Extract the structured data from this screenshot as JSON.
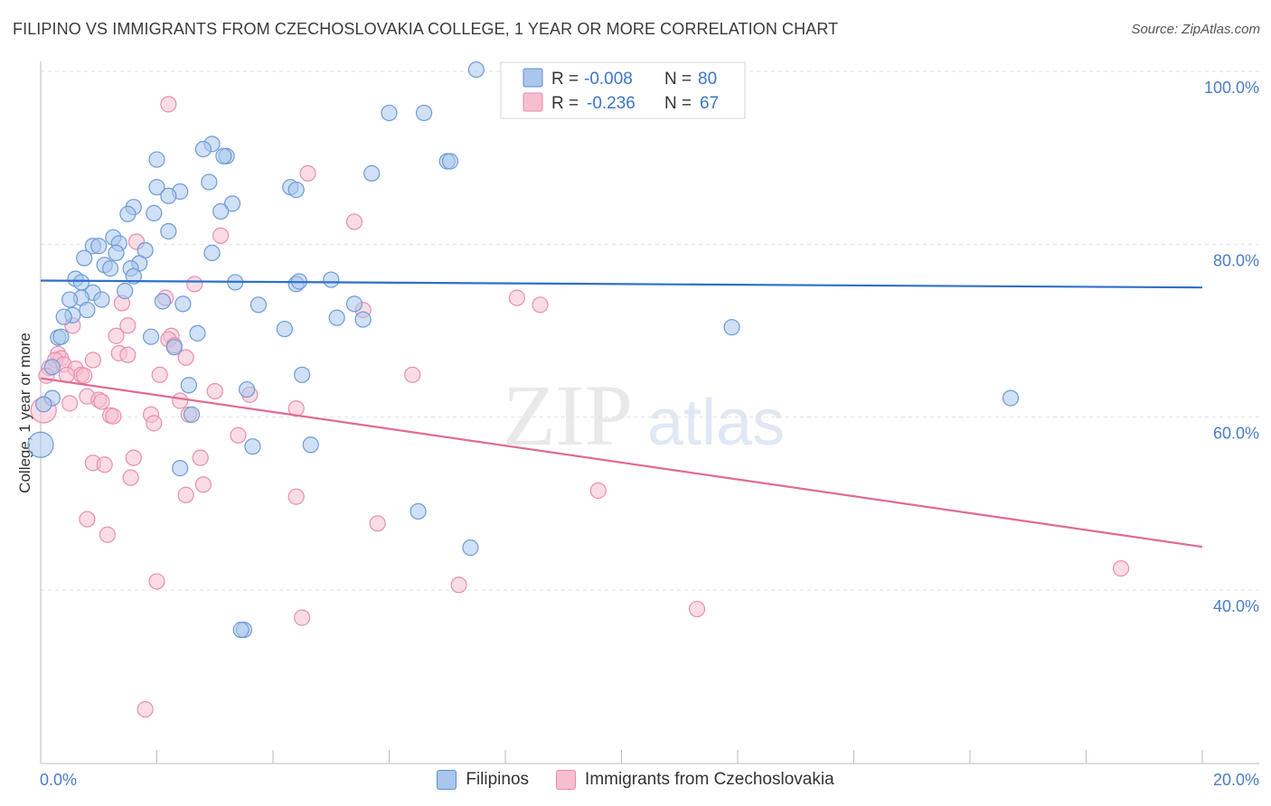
{
  "header": {
    "title": "FILIPINO VS IMMIGRANTS FROM CZECHOSLOVAKIA COLLEGE, 1 YEAR OR MORE CORRELATION CHART",
    "source": "Source: ZipAtlas.com"
  },
  "watermark": {
    "zip": "ZIP",
    "atlas": "atlas"
  },
  "colors": {
    "blue": "#5b8fd4",
    "blue_fill": "#aac6ec",
    "pink": "#e889a8",
    "pink_fill": "#f6bfd0",
    "axis_label": "#4a7cc7"
  },
  "legend": {
    "rows": [
      {
        "r_label": "R =",
        "r_value": "-0.008",
        "n_label": "N =",
        "n_value": "80"
      },
      {
        "r_label": "R =",
        "r_value": "-0.236",
        "n_label": "N =",
        "n_value": "67"
      }
    ]
  },
  "chart_data": {
    "type": "scatter",
    "title": "FILIPINO VS IMMIGRANTS FROM CZECHOSLOVAKIA COLLEGE, 1 YEAR OR MORE CORRELATION CHART",
    "xlabel": "",
    "ylabel": "College, 1 year or more",
    "xlim": [
      0,
      20
    ],
    "ylim": [
      20,
      102
    ],
    "x_tick_labels": [
      "0.0%",
      "20.0%"
    ],
    "y_ticks": [
      40,
      60,
      80,
      100
    ],
    "y_tick_labels": [
      "40.0%",
      "60.0%",
      "80.0%",
      "100.0%"
    ],
    "grid": true,
    "legend_position": "top-center",
    "series": [
      {
        "name": "Filipinos",
        "r": -0.008,
        "n": 80,
        "trend": {
          "x": [
            0,
            20
          ],
          "y": [
            75.8,
            75.0
          ]
        },
        "points": [
          [
            7.5,
            100.2
          ],
          [
            6.0,
            95.2
          ],
          [
            6.6,
            95.2
          ],
          [
            2.95,
            91.6
          ],
          [
            2.8,
            91.0
          ],
          [
            3.2,
            90.2
          ],
          [
            3.15,
            90.2
          ],
          [
            2.0,
            89.8
          ],
          [
            7.0,
            89.6
          ],
          [
            7.05,
            89.6
          ],
          [
            5.7,
            88.2
          ],
          [
            2.9,
            87.2
          ],
          [
            2.0,
            86.6
          ],
          [
            4.3,
            86.6
          ],
          [
            4.4,
            86.3
          ],
          [
            2.4,
            86.1
          ],
          [
            2.2,
            85.6
          ],
          [
            3.3,
            84.7
          ],
          [
            1.6,
            84.3
          ],
          [
            3.1,
            83.8
          ],
          [
            1.5,
            83.5
          ],
          [
            1.95,
            83.6
          ],
          [
            2.2,
            81.5
          ],
          [
            1.25,
            80.8
          ],
          [
            1.35,
            80.1
          ],
          [
            0.9,
            79.8
          ],
          [
            1.0,
            79.8
          ],
          [
            1.8,
            79.3
          ],
          [
            2.95,
            79.0
          ],
          [
            1.3,
            79.0
          ],
          [
            0.75,
            78.4
          ],
          [
            1.7,
            77.8
          ],
          [
            1.1,
            77.6
          ],
          [
            1.2,
            77.2
          ],
          [
            1.55,
            77.2
          ],
          [
            1.6,
            76.3
          ],
          [
            0.6,
            76.0
          ],
          [
            0.7,
            75.6
          ],
          [
            5.0,
            75.9
          ],
          [
            3.35,
            75.6
          ],
          [
            4.4,
            75.4
          ],
          [
            4.45,
            75.7
          ],
          [
            1.45,
            74.6
          ],
          [
            0.9,
            74.4
          ],
          [
            0.7,
            73.8
          ],
          [
            0.5,
            73.6
          ],
          [
            1.05,
            73.6
          ],
          [
            2.1,
            73.4
          ],
          [
            2.45,
            73.1
          ],
          [
            3.75,
            73.0
          ],
          [
            5.4,
            73.1
          ],
          [
            0.8,
            72.4
          ],
          [
            0.55,
            71.8
          ],
          [
            0.4,
            71.6
          ],
          [
            5.1,
            71.5
          ],
          [
            5.55,
            71.3
          ],
          [
            4.2,
            70.2
          ],
          [
            11.9,
            70.4
          ],
          [
            2.7,
            69.7
          ],
          [
            1.9,
            69.3
          ],
          [
            0.3,
            69.2
          ],
          [
            0.35,
            69.3
          ],
          [
            2.3,
            68.1
          ],
          [
            4.5,
            64.9
          ],
          [
            0.2,
            65.8
          ],
          [
            2.55,
            63.7
          ],
          [
            3.55,
            63.2
          ],
          [
            16.7,
            62.2
          ],
          [
            0.2,
            62.2
          ],
          [
            0.05,
            61.5
          ],
          [
            2.6,
            60.3
          ],
          [
            3.65,
            56.6
          ],
          [
            4.65,
            56.8
          ],
          [
            0.0,
            56.8
          ],
          [
            2.4,
            54.1
          ],
          [
            6.5,
            49.1
          ],
          [
            7.4,
            44.9
          ],
          [
            3.5,
            35.4
          ],
          [
            3.45,
            35.4
          ]
        ]
      },
      {
        "name": "Immigrants from Czechoslovakia",
        "r": -0.236,
        "n": 67,
        "trend": {
          "x": [
            0,
            20
          ],
          "y": [
            64.5,
            45.0
          ]
        },
        "points": [
          [
            2.2,
            96.2
          ],
          [
            4.6,
            88.2
          ],
          [
            5.4,
            82.6
          ],
          [
            3.1,
            81.0
          ],
          [
            1.65,
            80.3
          ],
          [
            2.65,
            75.4
          ],
          [
            2.15,
            73.8
          ],
          [
            8.2,
            73.8
          ],
          [
            8.6,
            73.0
          ],
          [
            1.4,
            73.2
          ],
          [
            5.55,
            72.4
          ],
          [
            1.5,
            70.6
          ],
          [
            0.55,
            70.6
          ],
          [
            1.3,
            69.4
          ],
          [
            2.25,
            69.4
          ],
          [
            2.2,
            69.0
          ],
          [
            2.3,
            68.3
          ],
          [
            1.35,
            67.4
          ],
          [
            1.5,
            67.2
          ],
          [
            0.3,
            67.3
          ],
          [
            0.35,
            66.8
          ],
          [
            0.25,
            66.6
          ],
          [
            2.5,
            66.9
          ],
          [
            0.9,
            66.6
          ],
          [
            0.15,
            65.7
          ],
          [
            0.4,
            66.1
          ],
          [
            0.6,
            65.6
          ],
          [
            0.7,
            64.9
          ],
          [
            0.1,
            64.8
          ],
          [
            0.75,
            64.8
          ],
          [
            0.45,
            64.9
          ],
          [
            2.05,
            64.9
          ],
          [
            6.4,
            64.9
          ],
          [
            0.8,
            62.4
          ],
          [
            3.0,
            63.0
          ],
          [
            3.6,
            62.6
          ],
          [
            1.0,
            62.0
          ],
          [
            1.05,
            61.8
          ],
          [
            0.5,
            61.6
          ],
          [
            2.4,
            61.9
          ],
          [
            4.4,
            61.0
          ],
          [
            0.05,
            60.8
          ],
          [
            1.2,
            60.2
          ],
          [
            1.25,
            60.1
          ],
          [
            1.9,
            60.3
          ],
          [
            2.55,
            60.3
          ],
          [
            1.95,
            59.3
          ],
          [
            3.4,
            57.9
          ],
          [
            1.6,
            55.3
          ],
          [
            2.75,
            55.3
          ],
          [
            0.9,
            54.7
          ],
          [
            1.1,
            54.5
          ],
          [
            1.55,
            53.0
          ],
          [
            2.8,
            52.2
          ],
          [
            2.5,
            51.0
          ],
          [
            4.4,
            50.8
          ],
          [
            9.6,
            51.5
          ],
          [
            0.8,
            48.2
          ],
          [
            5.8,
            47.7
          ],
          [
            1.15,
            46.4
          ],
          [
            2.0,
            41.0
          ],
          [
            7.2,
            40.6
          ],
          [
            18.6,
            42.5
          ],
          [
            11.3,
            37.8
          ],
          [
            4.5,
            36.8
          ],
          [
            1.8,
            26.2
          ]
        ]
      }
    ]
  },
  "bottom_legend": [
    {
      "label": "Filipinos"
    },
    {
      "label": "Immigrants from Czechoslovakia"
    }
  ]
}
